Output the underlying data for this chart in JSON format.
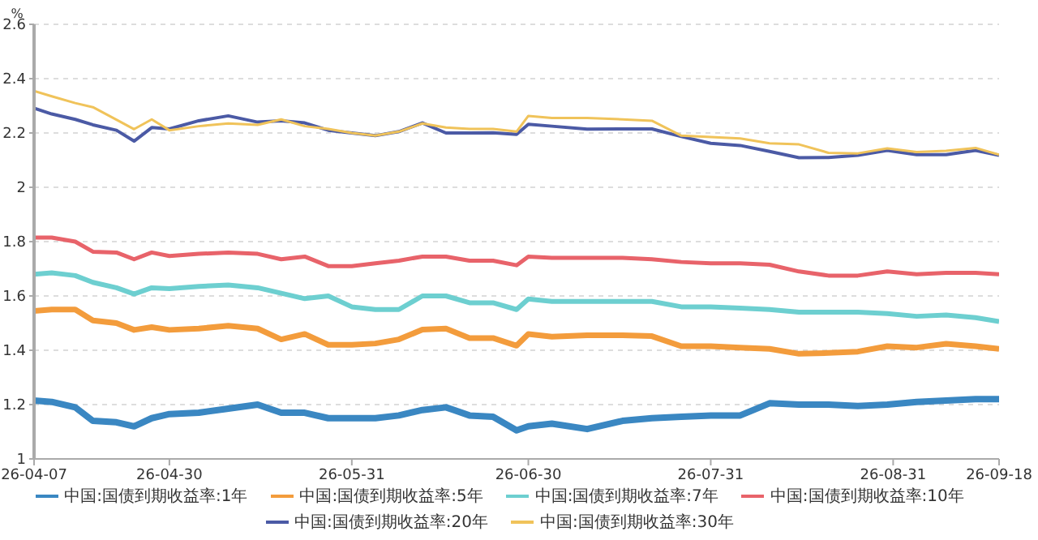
{
  "chart_data": {
    "type": "line",
    "ylabel": "%",
    "x": [
      "--04-07",
      "--04-10",
      "--04-14",
      "--04-17",
      "--04-21",
      "--04-24",
      "--04-27",
      "--04-30",
      "--05-05",
      "--05-10",
      "--05-15",
      "--05-19",
      "--05-23",
      "--05-27",
      "--05-31",
      "--06-04",
      "--06-08",
      "--06-12",
      "--06-16",
      "--06-20",
      "--06-24",
      "--06-28",
      "--06-30",
      "--07-04",
      "--07-10",
      "--07-16",
      "--07-21",
      "--07-26",
      "--07-31",
      "--08-05",
      "--08-10",
      "--08-15",
      "--08-20",
      "--08-25",
      "--08-30",
      "--09-04",
      "--09-09",
      "--09-14",
      "--09-18"
    ],
    "series": [
      {
        "name": "中国:国债到期收益率:1年",
        "color": "#3a87c2",
        "values": [
          1.215,
          1.21,
          1.19,
          1.14,
          1.135,
          1.12,
          1.15,
          1.165,
          1.17,
          1.185,
          1.2,
          1.17,
          1.17,
          1.15,
          1.15,
          1.15,
          1.16,
          1.18,
          1.19,
          1.16,
          1.155,
          1.105,
          1.12,
          1.13,
          1.11,
          1.14,
          1.15,
          1.155,
          1.16,
          1.16,
          1.205,
          1.2,
          1.2,
          1.195,
          1.2,
          1.21,
          1.215,
          1.22,
          1.22
        ]
      },
      {
        "name": "中国:国债到期收益率:5年",
        "color": "#f39c3c",
        "values": [
          1.545,
          1.55,
          1.55,
          1.51,
          1.5,
          1.475,
          1.485,
          1.475,
          1.48,
          1.49,
          1.48,
          1.44,
          1.46,
          1.42,
          1.42,
          1.425,
          1.44,
          1.476,
          1.48,
          1.445,
          1.445,
          1.417,
          1.46,
          1.45,
          1.455,
          1.455,
          1.452,
          1.415,
          1.415,
          1.41,
          1.405,
          1.387,
          1.39,
          1.395,
          1.415,
          1.41,
          1.424,
          1.415,
          1.405
        ]
      },
      {
        "name": "中国:国债到期收益率:7年",
        "color": "#6dcfd0",
        "values": [
          1.68,
          1.685,
          1.675,
          1.65,
          1.63,
          1.607,
          1.63,
          1.627,
          1.635,
          1.64,
          1.63,
          1.61,
          1.59,
          1.6,
          1.56,
          1.55,
          1.55,
          1.6,
          1.6,
          1.575,
          1.575,
          1.55,
          1.589,
          1.58,
          1.58,
          1.58,
          1.58,
          1.56,
          1.56,
          1.555,
          1.55,
          1.54,
          1.54,
          1.54,
          1.535,
          1.525,
          1.53,
          1.52,
          1.506
        ]
      },
      {
        "name": "中国:国债到期收益率:10年",
        "color": "#e8636a",
        "values": [
          1.815,
          1.815,
          1.8,
          1.763,
          1.76,
          1.735,
          1.76,
          1.747,
          1.755,
          1.76,
          1.755,
          1.735,
          1.745,
          1.71,
          1.71,
          1.72,
          1.73,
          1.745,
          1.745,
          1.73,
          1.73,
          1.713,
          1.745,
          1.74,
          1.74,
          1.74,
          1.735,
          1.725,
          1.72,
          1.72,
          1.715,
          1.69,
          1.675,
          1.675,
          1.69,
          1.68,
          1.685,
          1.685,
          1.68
        ]
      },
      {
        "name": "中国:国债到期收益率:20年",
        "color": "#4b5aa5",
        "values": [
          2.291,
          2.27,
          2.25,
          2.23,
          2.21,
          2.17,
          2.22,
          2.215,
          2.245,
          2.263,
          2.24,
          2.245,
          2.237,
          2.21,
          2.2,
          2.19,
          2.205,
          2.237,
          2.2,
          2.2,
          2.201,
          2.195,
          2.232,
          2.225,
          2.214,
          2.215,
          2.215,
          2.187,
          2.162,
          2.154,
          2.132,
          2.109,
          2.11,
          2.118,
          2.136,
          2.12,
          2.12,
          2.136,
          2.118
        ]
      },
      {
        "name": "中国:国债到期收益率:30年",
        "color": "#f0c35a",
        "values": [
          2.355,
          2.335,
          2.31,
          2.295,
          2.249,
          2.214,
          2.25,
          2.21,
          2.225,
          2.235,
          2.23,
          2.25,
          2.225,
          2.215,
          2.2,
          2.19,
          2.205,
          2.235,
          2.22,
          2.215,
          2.215,
          2.205,
          2.263,
          2.255,
          2.255,
          2.25,
          2.245,
          2.19,
          2.185,
          2.18,
          2.162,
          2.158,
          2.127,
          2.125,
          2.143,
          2.13,
          2.134,
          2.145,
          2.12
        ]
      }
    ],
    "xlim": [
      "--04-07",
      "--09-18"
    ],
    "xticks": [
      {
        "value": "--04-07",
        "label": "26-04-07"
      },
      {
        "value": "--04-30",
        "label": "26-04-30"
      },
      {
        "value": "--05-31",
        "label": "26-05-31"
      },
      {
        "value": "--06-30",
        "label": "26-06-30"
      },
      {
        "value": "--07-31",
        "label": "26-07-31"
      },
      {
        "value": "--08-31",
        "label": "26-08-31"
      },
      {
        "value": "--09-18",
        "label": "26-09-18"
      }
    ],
    "ylim": [
      1,
      2.6
    ],
    "yticks": [
      1,
      1.2,
      1.4,
      1.6,
      1.8,
      2,
      2.2,
      2.4,
      2.6
    ],
    "grid": "y",
    "legend": "bottom",
    "marker": "none",
    "line_style": "solid"
  }
}
